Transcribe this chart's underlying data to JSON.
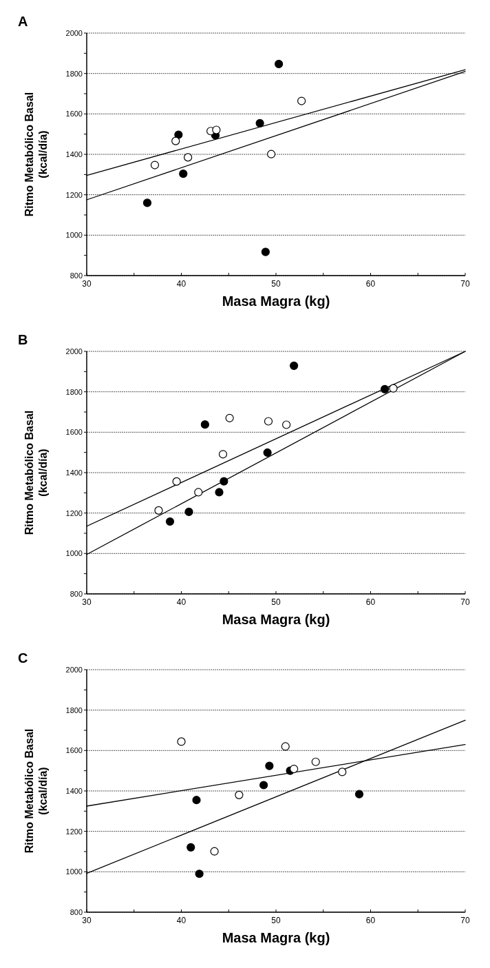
{
  "chart_data": [
    {
      "type": "scatter",
      "title": "A",
      "xlabel": "Masa Magra (kg)",
      "ylabel": "Ritmo Metabólico Basal\n(kcal/día)",
      "xlim": [
        30,
        70
      ],
      "ylim": [
        800,
        2000
      ],
      "xticks": [
        30,
        {
          "value": 35,
          "label": null
        },
        40,
        {
          "value": 45,
          "label": null
        },
        50,
        {
          "value": 55,
          "label": null
        },
        60,
        {
          "value": 65,
          "label": null
        },
        70
      ],
      "yticks": [
        800,
        {
          "value": 900,
          "label": null
        },
        1000,
        {
          "value": 1100,
          "label": null
        },
        1200,
        {
          "value": 1300,
          "label": null
        },
        1400,
        {
          "value": 1500,
          "label": null
        },
        1600,
        {
          "value": 1700,
          "label": null
        },
        1800,
        {
          "value": 1900,
          "label": null
        },
        2000
      ],
      "grid": "y",
      "series": [
        {
          "type": "line",
          "marker": "none",
          "color": "#000000",
          "x": [
            30,
            70
          ],
          "values": [
            1296,
            1819
          ]
        },
        {
          "type": "line",
          "marker": "none",
          "color": "#000000",
          "x": [
            30,
            70
          ],
          "values": [
            1175,
            1810
          ]
        },
        {
          "marker": "circle",
          "color": "#000000",
          "x": [
            36.4,
            39.7,
            40.2,
            43.6,
            48.3,
            50.3,
            48.9
          ],
          "values": [
            1160,
            1497,
            1304,
            1494,
            1554,
            1847,
            917
          ]
        },
        {
          "marker": "circle",
          "color": "#ffffff",
          "x": [
            37.2,
            39.4,
            40.7,
            43.1,
            43.7,
            49.5,
            52.7
          ],
          "values": [
            1347,
            1466,
            1385,
            1515,
            1521,
            1401,
            1664
          ]
        }
      ]
    },
    {
      "type": "scatter",
      "title": "B",
      "xlabel": "Masa Magra (kg)",
      "ylabel": "Ritmo Metabólico Basal\n(kcal/día)",
      "xlim": [
        30,
        70
      ],
      "ylim": [
        800,
        2000
      ],
      "xticks": [
        30,
        {
          "value": 35,
          "label": null
        },
        40,
        {
          "value": 45,
          "label": null
        },
        50,
        {
          "value": 55,
          "label": null
        },
        60,
        {
          "value": 65,
          "label": null
        },
        70
      ],
      "yticks": [
        800,
        {
          "value": 900,
          "label": null
        },
        1000,
        {
          "value": 1100,
          "label": null
        },
        1200,
        {
          "value": 1300,
          "label": null
        },
        1400,
        {
          "value": 1500,
          "label": null
        },
        1600,
        {
          "value": 1700,
          "label": null
        },
        1800,
        {
          "value": 1900,
          "label": null
        },
        2000
      ],
      "grid": "y",
      "series": [
        {
          "type": "line",
          "marker": "none",
          "color": "#000000",
          "x": [
            30,
            70
          ],
          "values": [
            1135,
            2000
          ]
        },
        {
          "type": "line",
          "marker": "none",
          "color": "#000000",
          "x": [
            30,
            70
          ],
          "values": [
            995,
            2000
          ]
        },
        {
          "marker": "circle",
          "color": "#000000",
          "x": [
            38.8,
            40.8,
            42.5,
            44.0,
            44.5,
            49.1,
            51.9,
            61.5
          ],
          "values": [
            1158,
            1206,
            1638,
            1303,
            1357,
            1499,
            1929,
            1813
          ]
        },
        {
          "marker": "circle",
          "color": "#ffffff",
          "x": [
            37.6,
            39.5,
            41.8,
            44.4,
            45.1,
            49.2,
            51.1,
            62.4
          ],
          "values": [
            1213,
            1356,
            1303,
            1491,
            1670,
            1654,
            1637,
            1817
          ]
        }
      ]
    },
    {
      "type": "scatter",
      "title": "C",
      "xlabel": "Masa Magra (kg)",
      "ylabel": "Ritmo Metabólico Basal\n(kcal/día)",
      "xlim": [
        30,
        70
      ],
      "ylim": [
        800,
        2000
      ],
      "xticks": [
        30,
        {
          "value": 35,
          "label": null
        },
        40,
        {
          "value": 45,
          "label": null
        },
        50,
        {
          "value": 55,
          "label": null
        },
        60,
        {
          "value": 65,
          "label": null
        },
        70
      ],
      "yticks": [
        800,
        {
          "value": 900,
          "label": null
        },
        1000,
        {
          "value": 1100,
          "label": null
        },
        1200,
        {
          "value": 1300,
          "label": null
        },
        1400,
        {
          "value": 1500,
          "label": null
        },
        1600,
        {
          "value": 1700,
          "label": null
        },
        1800,
        {
          "value": 1900,
          "label": null
        },
        2000
      ],
      "grid": "y",
      "series": [
        {
          "type": "line",
          "marker": "none",
          "color": "#000000",
          "x": [
            30,
            70
          ],
          "values": [
            1325,
            1630
          ]
        },
        {
          "type": "line",
          "marker": "none",
          "color": "#000000",
          "x": [
            30,
            70
          ],
          "values": [
            992,
            1750
          ]
        },
        {
          "marker": "circle",
          "color": "#000000",
          "x": [
            41.6,
            41.0,
            41.9,
            48.7,
            49.3,
            51.5,
            58.8
          ],
          "values": [
            1355,
            1121,
            990,
            1429,
            1524,
            1500,
            1384
          ]
        },
        {
          "marker": "circle",
          "color": "#ffffff",
          "x": [
            40.0,
            43.5,
            46.1,
            51.0,
            51.9,
            54.2,
            57.0
          ],
          "values": [
            1644,
            1101,
            1380,
            1620,
            1509,
            1544,
            1494
          ]
        }
      ]
    }
  ]
}
